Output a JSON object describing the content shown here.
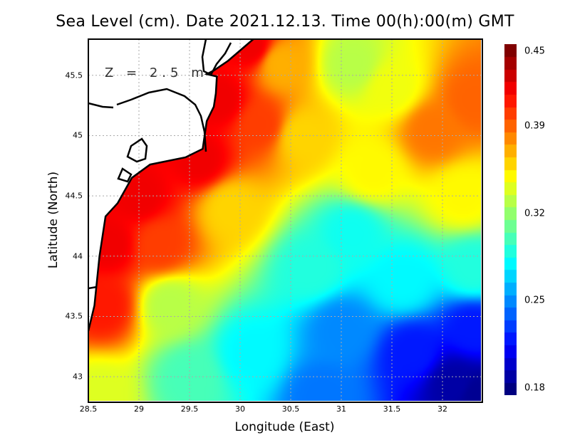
{
  "title": "Sea Level (cm). Date 2021.12.13. Time 00(h):00(m) GMT",
  "depth_label": "Z = 2.5 m",
  "chart_data": {
    "type": "heatmap",
    "xlabel": "Longitude (East)",
    "ylabel": "Latitude (North)",
    "xlim": [
      28.5,
      32.38
    ],
    "ylim": [
      42.8,
      45.8
    ],
    "x_ticks": [
      "28.5",
      "29",
      "29.5",
      "30",
      "30.5",
      "31",
      "31.5",
      "32"
    ],
    "y_ticks": [
      "43",
      "43.5",
      "44",
      "44.5",
      "45",
      "45.5"
    ],
    "grid": true,
    "colorbar": {
      "range": [
        0.18,
        0.45
      ],
      "ticks": [
        "0.45",
        "0.39",
        "0.32",
        "0.25",
        "0.18"
      ],
      "colormap": "jet"
    },
    "field_samples": [
      {
        "lon": 30.1,
        "lat": 45.75,
        "value": 0.42
      },
      {
        "lon": 29.8,
        "lat": 45.3,
        "value": 0.42
      },
      {
        "lon": 29.6,
        "lat": 44.8,
        "value": 0.42
      },
      {
        "lon": 29.0,
        "lat": 44.5,
        "value": 0.42
      },
      {
        "lon": 28.7,
        "lat": 44.1,
        "value": 0.42
      },
      {
        "lon": 28.65,
        "lat": 43.6,
        "value": 0.41
      },
      {
        "lon": 29.2,
        "lat": 44.1,
        "value": 0.4
      },
      {
        "lon": 30.2,
        "lat": 45.1,
        "value": 0.4
      },
      {
        "lon": 30.4,
        "lat": 45.6,
        "value": 0.37
      },
      {
        "lon": 30.6,
        "lat": 45.0,
        "value": 0.36
      },
      {
        "lon": 29.9,
        "lat": 44.4,
        "value": 0.36
      },
      {
        "lon": 31.1,
        "lat": 45.6,
        "value": 0.33
      },
      {
        "lon": 31.5,
        "lat": 45.4,
        "value": 0.345
      },
      {
        "lon": 31.9,
        "lat": 45.05,
        "value": 0.385
      },
      {
        "lon": 32.3,
        "lat": 45.3,
        "value": 0.39
      },
      {
        "lon": 31.3,
        "lat": 44.7,
        "value": 0.35
      },
      {
        "lon": 32.2,
        "lat": 44.5,
        "value": 0.35
      },
      {
        "lon": 29.3,
        "lat": 43.6,
        "value": 0.33
      },
      {
        "lon": 28.6,
        "lat": 42.85,
        "value": 0.34
      },
      {
        "lon": 29.5,
        "lat": 43.0,
        "value": 0.3
      },
      {
        "lon": 30.1,
        "lat": 43.2,
        "value": 0.28
      },
      {
        "lon": 30.7,
        "lat": 43.9,
        "value": 0.29
      },
      {
        "lon": 31.1,
        "lat": 44.2,
        "value": 0.285
      },
      {
        "lon": 31.0,
        "lat": 43.4,
        "value": 0.25
      },
      {
        "lon": 30.8,
        "lat": 42.85,
        "value": 0.245
      },
      {
        "lon": 31.6,
        "lat": 43.8,
        "value": 0.28
      },
      {
        "lon": 32.3,
        "lat": 43.9,
        "value": 0.29
      },
      {
        "lon": 31.7,
        "lat": 43.2,
        "value": 0.22
      },
      {
        "lon": 32.1,
        "lat": 42.95,
        "value": 0.19
      },
      {
        "lon": 32.35,
        "lat": 42.85,
        "value": 0.185
      },
      {
        "lon": 32.3,
        "lat": 43.4,
        "value": 0.22
      }
    ],
    "coastline": [
      [
        30.13,
        45.8
      ],
      [
        29.88,
        45.62
      ],
      [
        29.74,
        45.54
      ],
      [
        29.67,
        45.51
      ],
      [
        29.77,
        45.49
      ],
      [
        29.76,
        45.35
      ],
      [
        29.74,
        45.24
      ],
      [
        29.67,
        45.12
      ],
      [
        29.63,
        44.89
      ],
      [
        29.46,
        44.82
      ],
      [
        29.11,
        44.76
      ],
      [
        28.93,
        44.65
      ],
      [
        28.79,
        44.44
      ],
      [
        28.67,
        44.33
      ],
      [
        28.61,
        44.0
      ],
      [
        28.56,
        43.59
      ],
      [
        28.5,
        43.38
      ]
    ]
  }
}
